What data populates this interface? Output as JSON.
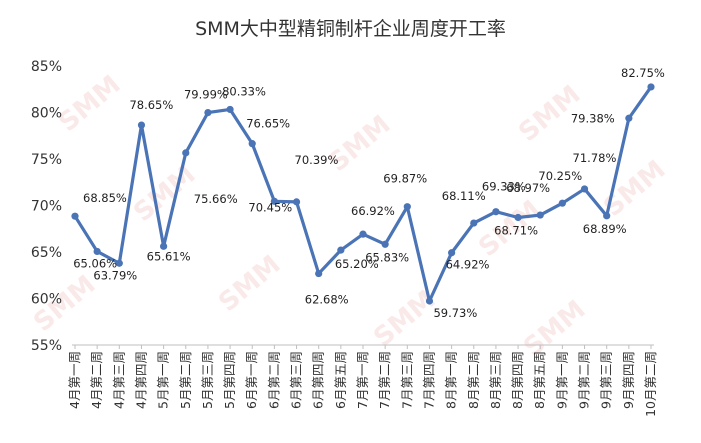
{
  "chart_data": {
    "type": "line",
    "title": "SMM大中型精铜制杆企业周度开工率",
    "xlabel": "",
    "ylabel": "",
    "ylim": [
      55,
      85
    ],
    "yticks": [
      "55%",
      "60%",
      "65%",
      "70%",
      "75%",
      "80%",
      "85%"
    ],
    "grid": false,
    "legend": "none",
    "line_color": "#4a74b6",
    "watermark": "SMM",
    "categories": [
      "4月第一周",
      "4月第二周",
      "4月第三周",
      "4月第四周",
      "5月第一周",
      "5月第二周",
      "5月第三周",
      "5月第四周",
      "6月第一周",
      "6月第二周",
      "6月第三周",
      "6月第四周",
      "6月第五周",
      "7月第一周",
      "7月第二周",
      "7月第三周",
      "7月第四周",
      "8月第一周",
      "8月第二周",
      "8月第三周",
      "8月第四周",
      "8月第五周",
      "9月第一周",
      "9月第二周",
      "9月第三周",
      "9月第四周",
      "10月第二周"
    ],
    "values": [
      68.85,
      65.06,
      63.79,
      78.65,
      65.61,
      75.66,
      79.99,
      80.33,
      76.65,
      70.45,
      70.39,
      62.68,
      65.2,
      66.92,
      65.83,
      69.87,
      59.73,
      64.92,
      68.11,
      69.33,
      68.71,
      68.97,
      70.25,
      71.78,
      68.89,
      79.38,
      82.75
    ],
    "data_labels": [
      "68.85%",
      "65.06%",
      "63.79%",
      "78.65%",
      "65.61%",
      "75.66%",
      "79.99%",
      "80.33%",
      "76.65%",
      "70.45%",
      "70.39%",
      "62.68%",
      "65.20%",
      "66.92%",
      "65.83%",
      "69.87%",
      "59.73%",
      "64.92%",
      "68.11%",
      "69.33%",
      "68.71%",
      "68.97%",
      "70.25%",
      "71.78%",
      "68.89%",
      "79.38%",
      "82.75%"
    ]
  }
}
